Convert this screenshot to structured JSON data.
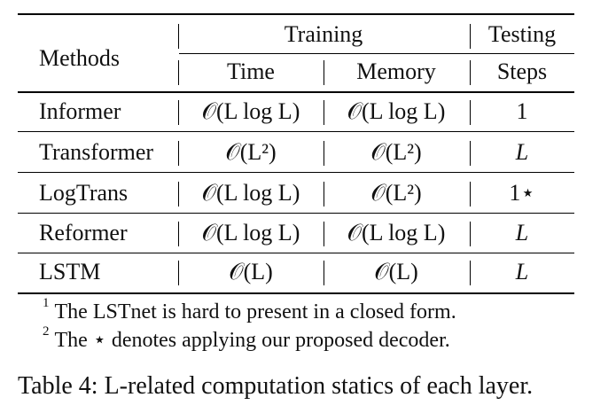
{
  "table": {
    "header": {
      "methods": "Methods",
      "training": "Training",
      "testing": "Testing",
      "time": "Time",
      "memory": "Memory",
      "steps": "Steps"
    },
    "rows": [
      {
        "method": "Informer",
        "time": "𝒪(L log L)",
        "memory": "𝒪(L log L)",
        "steps": "1"
      },
      {
        "method": "Transformer",
        "time": "𝒪(L²)",
        "memory": "𝒪(L²)",
        "steps": "L"
      },
      {
        "method": "LogTrans",
        "time": "𝒪(L log L)",
        "memory": "𝒪(L²)",
        "steps": "1⋆"
      },
      {
        "method": "Reformer",
        "time": "𝒪(L log L)",
        "memory": "𝒪(L log L)",
        "steps": "L"
      },
      {
        "method": "LSTM",
        "time": "𝒪(L)",
        "memory": "𝒪(L)",
        "steps": "L"
      }
    ]
  },
  "footnotes": [
    {
      "mark": "1",
      "text": "The LSTnet is hard to present in a closed form."
    },
    {
      "mark": "2",
      "text": "The ⋆ denotes applying our proposed decoder."
    }
  ],
  "caption": "Table 4: L-related computation statics of each layer."
}
